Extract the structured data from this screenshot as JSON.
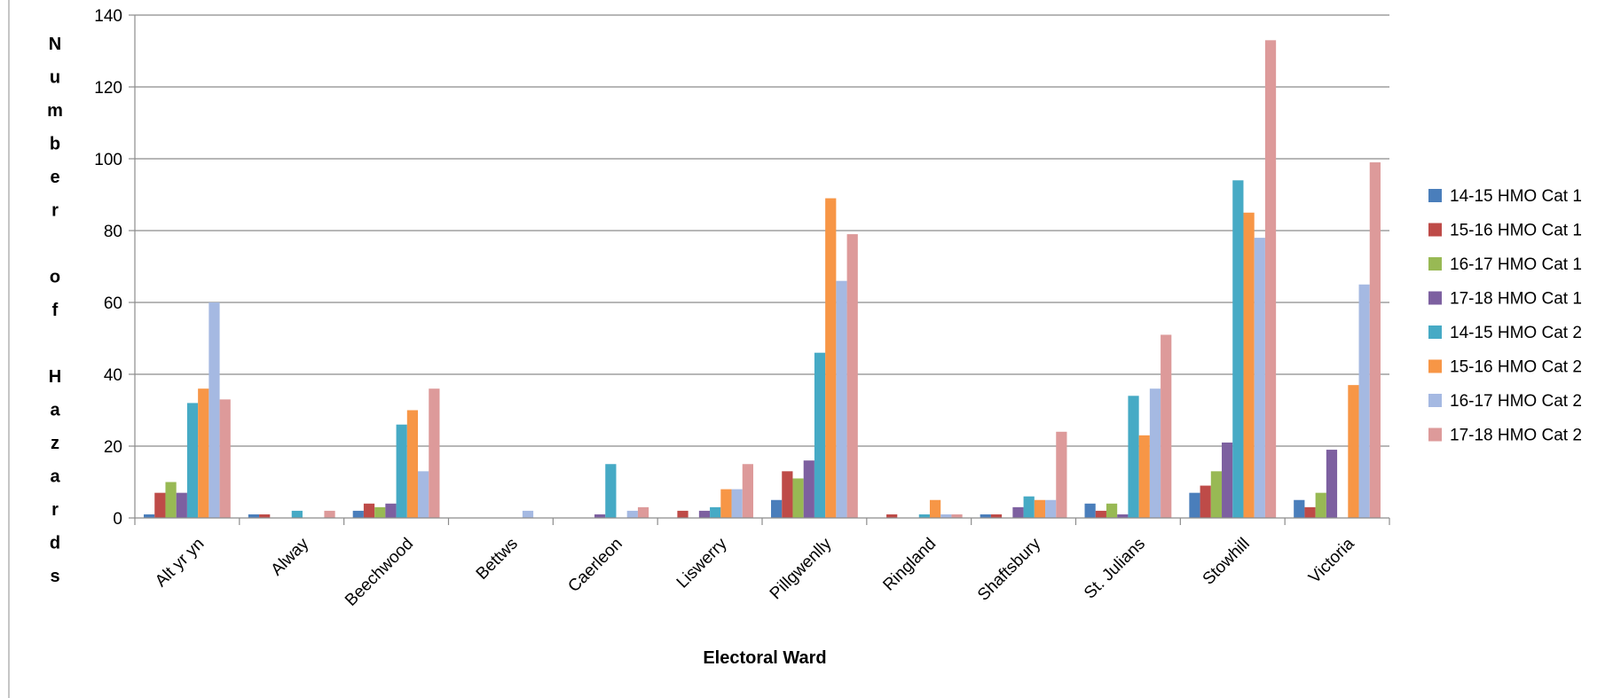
{
  "chart_data": {
    "type": "bar",
    "title": "",
    "xlabel": "Electoral Ward",
    "ylabel": "Number of Hazards",
    "ylim": [
      0,
      140
    ],
    "yticks": [
      0,
      20,
      40,
      60,
      80,
      100,
      120,
      140
    ],
    "grid": true,
    "legend_position": "right",
    "categories": [
      "Alt yr yn",
      "Alway",
      "Beechwood",
      "Bettws",
      "Caerleon",
      "Liswerry",
      "Pillgwenlly",
      "Ringland",
      "Shaftsbury",
      "St. Julians",
      "Stowhill",
      "Victoria"
    ],
    "series": [
      {
        "name": "14-15 HMO Cat 1",
        "color": "#4a7ebb",
        "values": [
          1,
          1,
          2,
          0,
          0,
          0,
          5,
          0,
          1,
          4,
          7,
          5
        ]
      },
      {
        "name": "15-16 HMO Cat 1",
        "color": "#be4b48",
        "values": [
          7,
          1,
          4,
          0,
          0,
          2,
          13,
          1,
          1,
          2,
          9,
          3
        ]
      },
      {
        "name": "16-17 HMO Cat 1",
        "color": "#98b954",
        "values": [
          10,
          0,
          3,
          0,
          0,
          0,
          11,
          0,
          0,
          4,
          13,
          7
        ]
      },
      {
        "name": "17-18 HMO Cat 1",
        "color": "#7d60a0",
        "values": [
          7,
          0,
          4,
          0,
          1,
          2,
          16,
          0,
          3,
          1,
          21,
          19
        ]
      },
      {
        "name": "14-15 HMO Cat 2",
        "color": "#46aac5",
        "values": [
          32,
          2,
          26,
          0,
          15,
          3,
          46,
          1,
          6,
          34,
          94,
          0
        ]
      },
      {
        "name": "15-16 HMO Cat 2",
        "color": "#f79646",
        "values": [
          36,
          0,
          30,
          0,
          0,
          8,
          89,
          5,
          5,
          23,
          85,
          37
        ]
      },
      {
        "name": "16-17 HMO Cat 2",
        "color": "#a5b9e2",
        "values": [
          60,
          0,
          13,
          2,
          2,
          8,
          66,
          1,
          5,
          36,
          78,
          65
        ]
      },
      {
        "name": "17-18 HMO Cat 2",
        "color": "#dd9a9a",
        "values": [
          33,
          2,
          36,
          0,
          3,
          15,
          79,
          1,
          24,
          51,
          133,
          99
        ]
      }
    ]
  }
}
